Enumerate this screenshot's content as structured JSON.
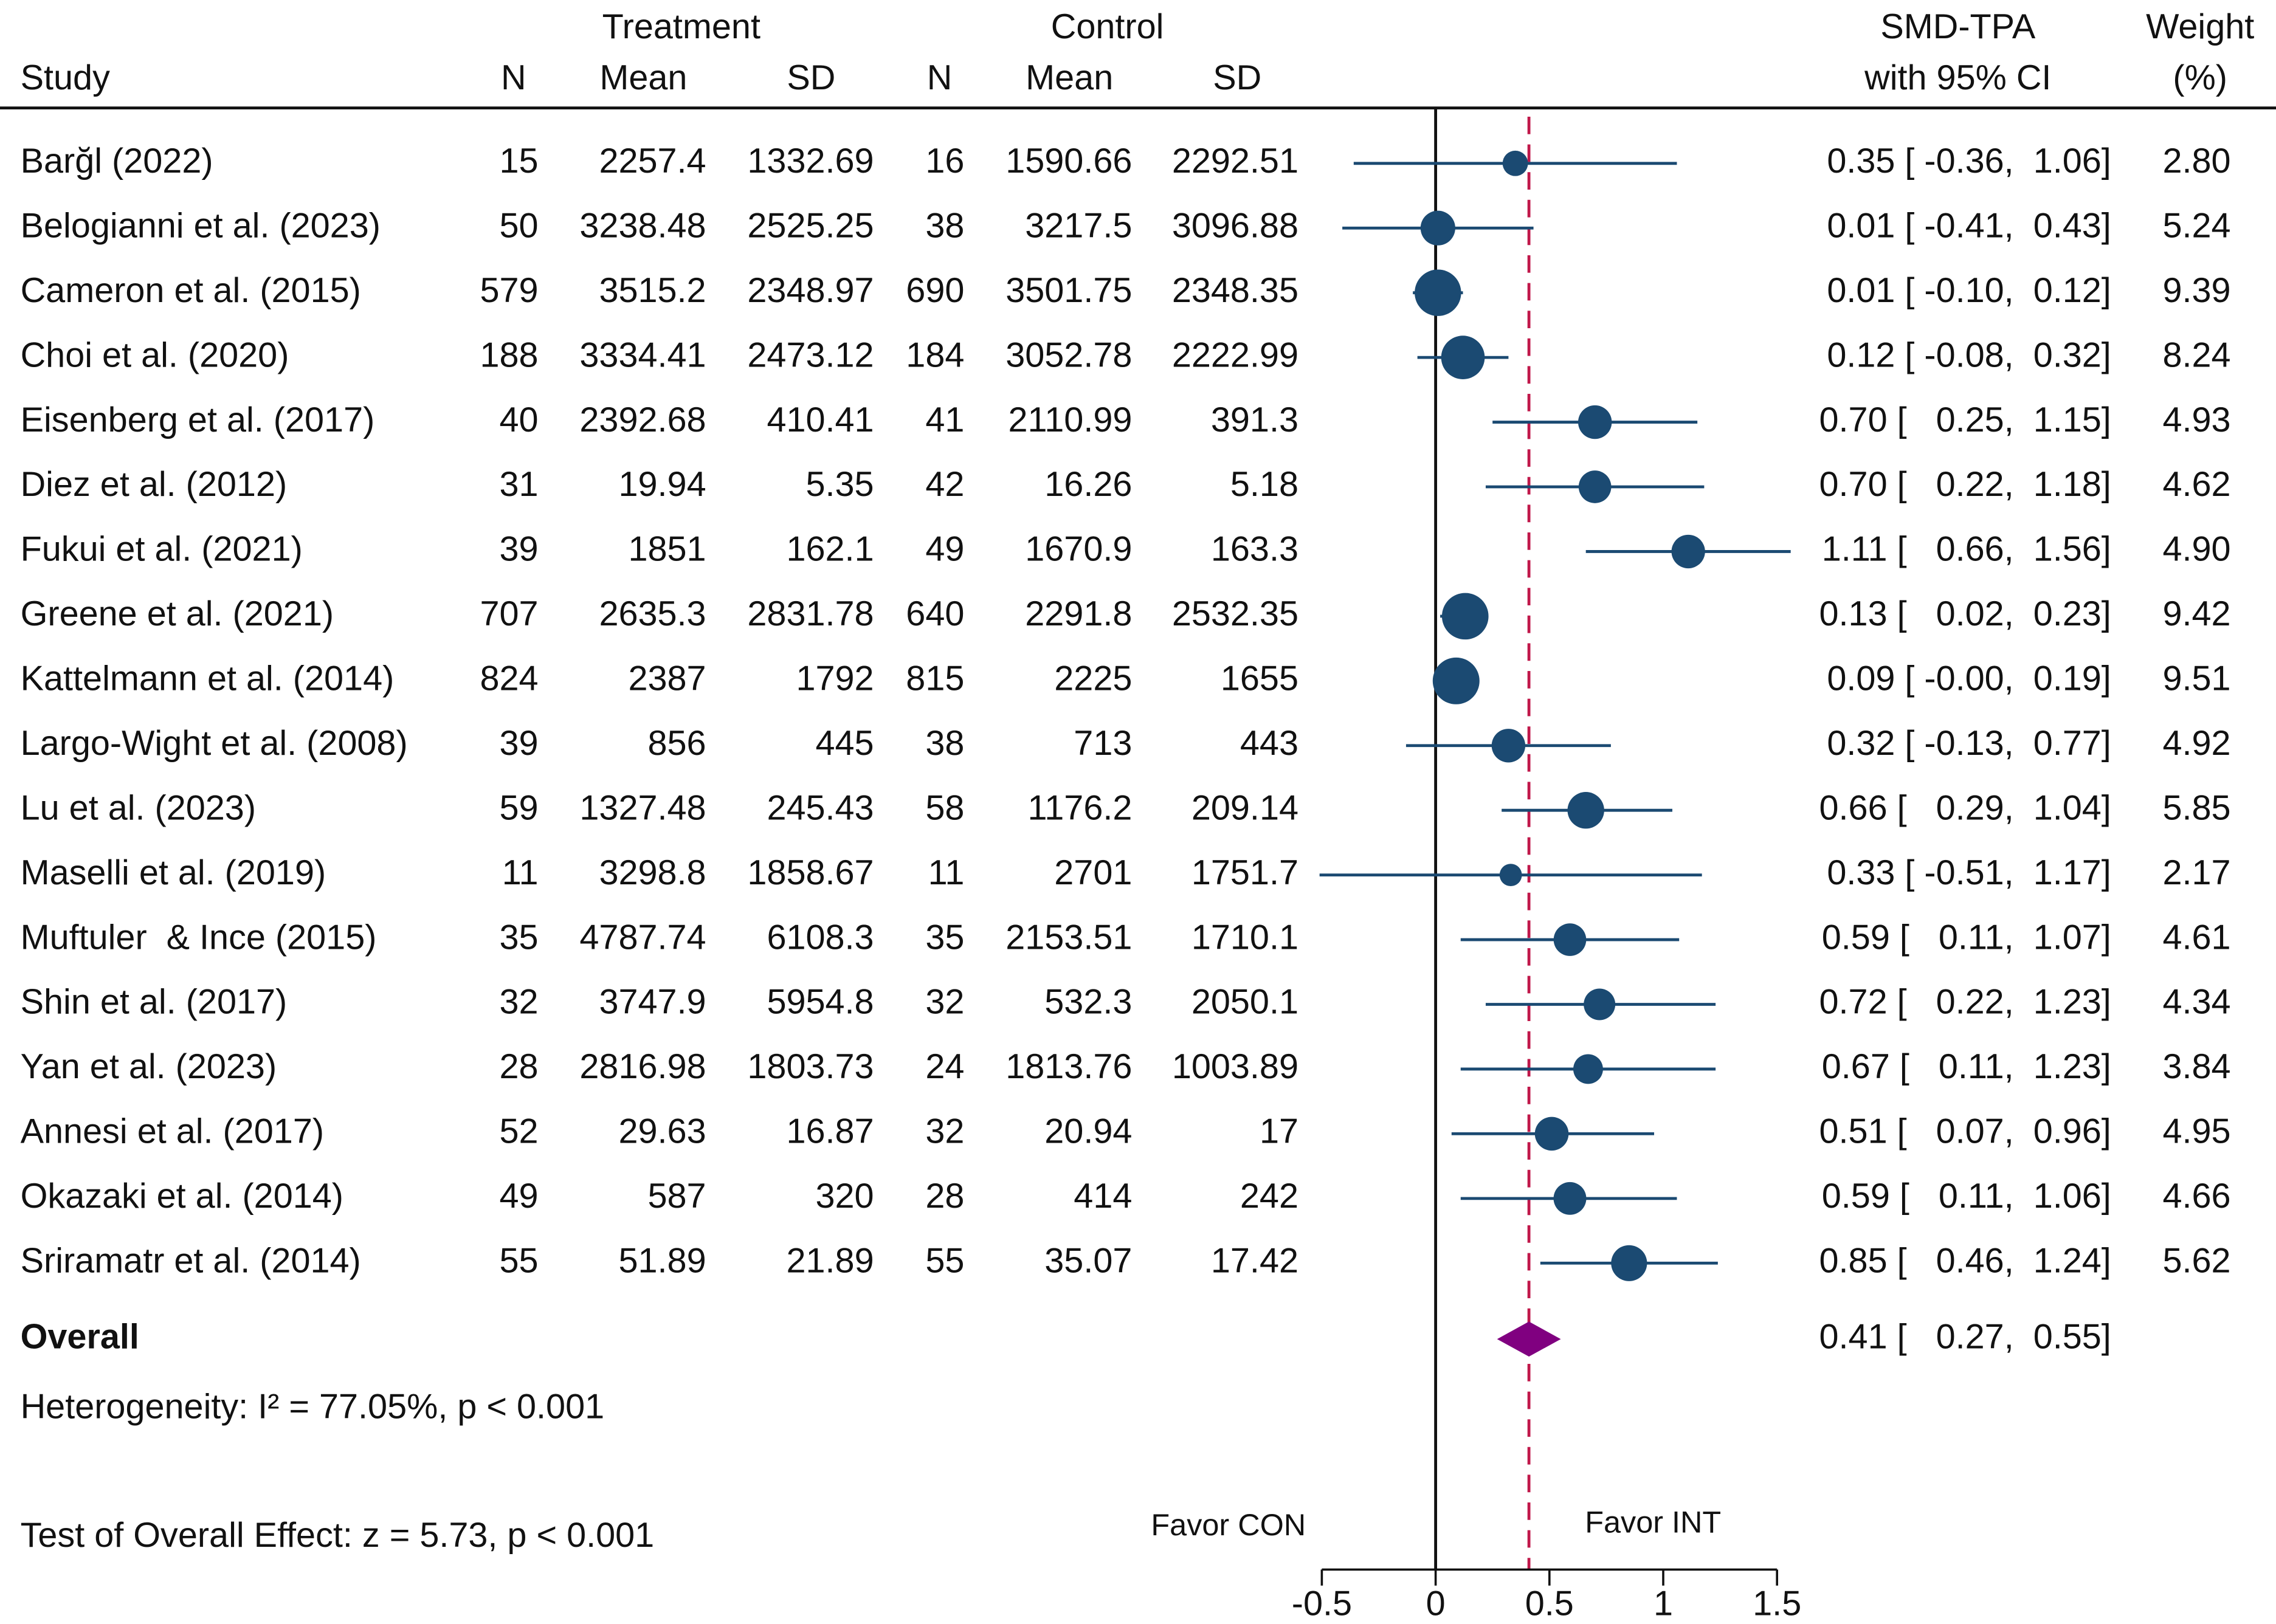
{
  "chart_data": {
    "type": "forest",
    "column_groups": [
      "Treatment",
      "Control"
    ],
    "columns": [
      "Study",
      "N",
      "Mean",
      "SD",
      "N",
      "Mean",
      "SD"
    ],
    "effect_header": [
      "SMD-TPA",
      "with 95% CI"
    ],
    "weight_header": [
      "Weight",
      "(%)"
    ],
    "studies": [
      "Barğl (2022)",
      "Belogianni et al. (2023)",
      "Cameron et al. (2015)",
      "Choi et al. (2020)",
      "Eisenberg et al. (2017)",
      "Diez et al. (2012)",
      "Fukui et al. (2021)",
      "Greene et al. (2021)",
      "Kattelmann et al. (2014)",
      "Largo-Wight et al. (2008)",
      "Lu et al. (2023)",
      "Maselli et al. (2019)",
      "Muftuler  & Ince (2015)",
      "Shin et al. (2017)",
      "Yan et al. (2023)",
      "Annesi et al. (2017)",
      "Okazaki et al. (2014)",
      "Sriramatr et al. (2014)"
    ],
    "treatment": {
      "n": [
        15,
        50,
        579,
        188,
        40,
        31,
        39,
        707,
        824,
        39,
        59,
        11,
        35,
        32,
        28,
        52,
        49,
        55
      ],
      "mean": [
        2257.4,
        3238.48,
        3515.2,
        3334.41,
        2392.68,
        19.94,
        1851,
        2635.3,
        2387,
        856,
        1327.48,
        3298.8,
        4787.74,
        3747.9,
        2816.98,
        29.63,
        587,
        51.89
      ],
      "sd": [
        1332.69,
        2525.25,
        2348.97,
        2473.12,
        410.41,
        5.35,
        162.1,
        2831.78,
        1792,
        445,
        245.43,
        1858.67,
        6108.3,
        5954.8,
        1803.73,
        16.87,
        320,
        21.89
      ]
    },
    "control": {
      "n": [
        16,
        38,
        690,
        184,
        41,
        42,
        49,
        640,
        815,
        38,
        58,
        11,
        35,
        32,
        24,
        32,
        28,
        55
      ],
      "mean": [
        1590.66,
        3217.5,
        3501.75,
        3052.78,
        2110.99,
        16.26,
        1670.9,
        2291.8,
        2225,
        713,
        1176.2,
        2701,
        2153.51,
        532.3,
        1813.76,
        20.94,
        414,
        35.07
      ],
      "sd": [
        2292.51,
        3096.88,
        2348.35,
        2222.99,
        391.3,
        5.18,
        163.3,
        2532.35,
        1655,
        443,
        209.14,
        1751.7,
        1710.1,
        2050.1,
        1003.89,
        17,
        242,
        17.42
      ]
    },
    "effect": [
      0.35,
      0.01,
      0.01,
      0.12,
      0.7,
      0.7,
      1.11,
      0.13,
      0.09,
      0.32,
      0.66,
      0.33,
      0.59,
      0.72,
      0.67,
      0.51,
      0.59,
      0.85
    ],
    "ci_lower": [
      -0.36,
      -0.41,
      -0.1,
      -0.08,
      0.25,
      0.22,
      0.66,
      0.02,
      0,
      -0.13,
      0.29,
      -0.51,
      0.11,
      0.22,
      0.11,
      0.07,
      0.11,
      0.46
    ],
    "ci_upper": [
      1.06,
      0.43,
      0.12,
      0.32,
      1.15,
      1.18,
      1.56,
      0.23,
      0.19,
      0.77,
      1.04,
      1.17,
      1.07,
      1.23,
      1.23,
      0.96,
      1.06,
      1.24
    ],
    "ci_texts": [
      "0.35 [ -0.36,  1.06]",
      "0.01 [ -0.41,  0.43]",
      "0.01 [ -0.10,  0.12]",
      "0.12 [ -0.08,  0.32]",
      "0.70 [   0.25,  1.15]",
      "0.70 [   0.22,  1.18]",
      "1.11 [   0.66,  1.56]",
      "0.13 [   0.02,  0.23]",
      "0.09 [ -0.00,  0.19]",
      "0.32 [ -0.13,  0.77]",
      "0.66 [   0.29,  1.04]",
      "0.33 [ -0.51,  1.17]",
      "0.59 [   0.11,  1.07]",
      "0.72 [   0.22,  1.23]",
      "0.67 [   0.11,  1.23]",
      "0.51 [   0.07,  0.96]",
      "0.59 [   0.11,  1.06]",
      "0.85 [   0.46,  1.24]"
    ],
    "weight": {
      "values": [
        2.8,
        5.24,
        9.39,
        8.24,
        4.93,
        4.62,
        4.9,
        9.42,
        9.51,
        4.92,
        5.85,
        2.17,
        4.61,
        4.34,
        3.84,
        4.95,
        4.66,
        5.62
      ],
      "value_labels": [
        "2.80",
        "5.24",
        "9.39",
        "8.24",
        "4.93",
        "4.62",
        "4.90",
        "9.42",
        "9.51",
        "4.92",
        "5.85",
        "2.17",
        "4.61",
        "4.34",
        "3.84",
        "4.95",
        "4.66",
        "5.62"
      ]
    },
    "overall": {
      "label": "Overall",
      "effect": 0.41,
      "ci_lower": 0.27,
      "ci_upper": 0.55,
      "ci_text": "0.41 [   0.27,  0.55]",
      "color": "#800080"
    },
    "heterogeneity": "Heterogeneity: I² = 77.05%, p < 0.001",
    "overall_test": "Test of Overall Effect: z = 5.73, p < 0.001",
    "annotations": [
      "Favor CON",
      "Favor INT"
    ],
    "marker_color": "#1b4a72",
    "overall_line_color": "#c0184a",
    "reference_line": 0,
    "xlim": [
      -0.5,
      1.5
    ],
    "xticks": [
      -0.5,
      0,
      0.5,
      1,
      1.5
    ]
  }
}
